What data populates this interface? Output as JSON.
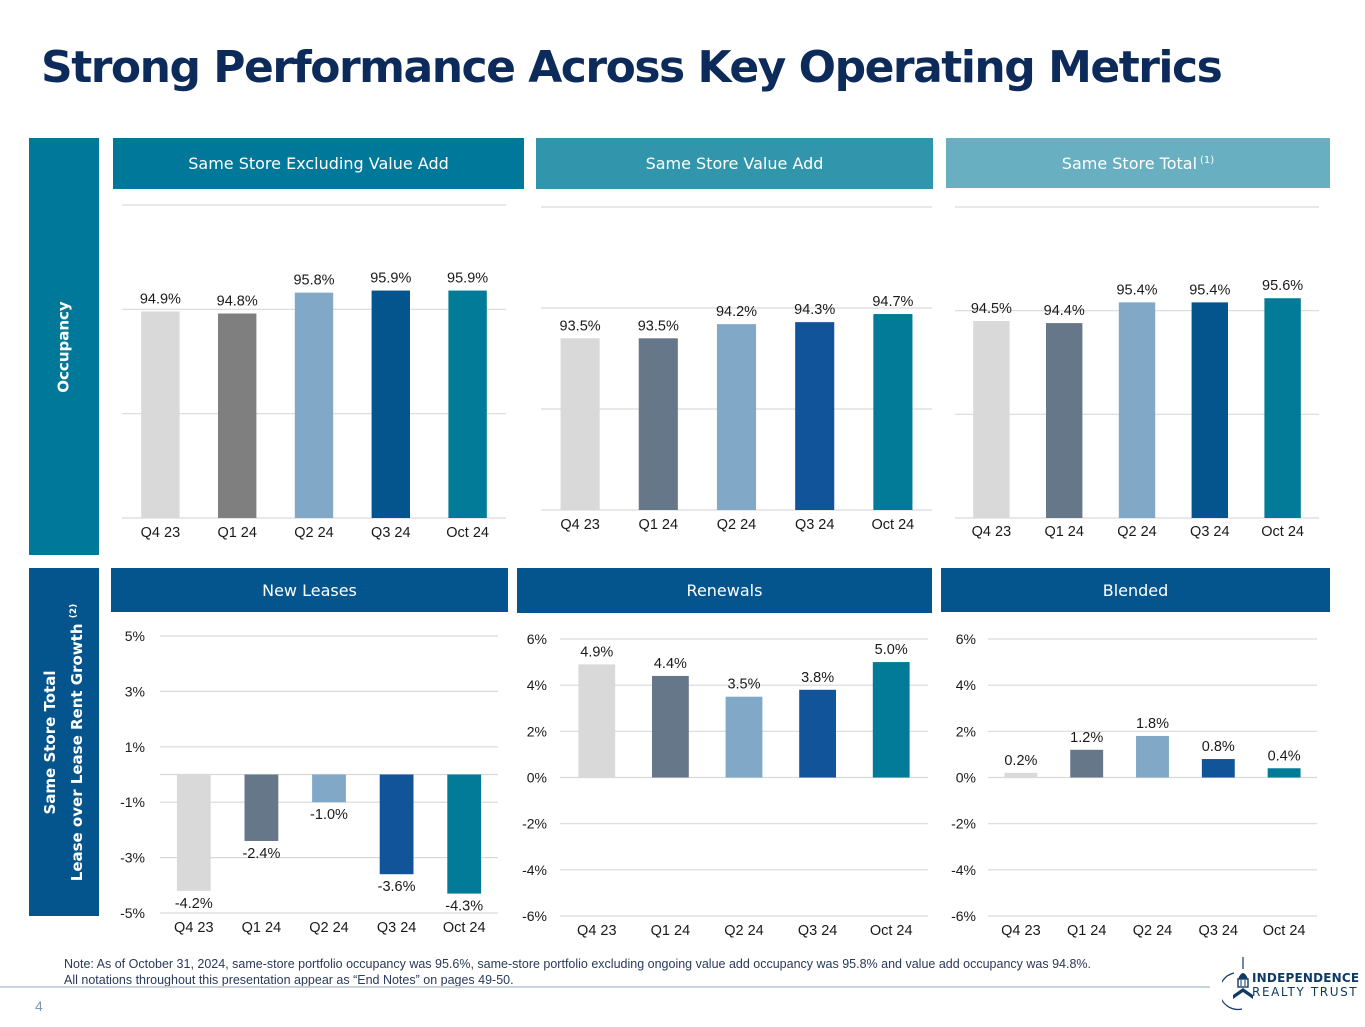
{
  "page": {
    "title": "Strong Performance Across Key Operating Metrics",
    "page_number": "4",
    "note_line1": "Note: As of October 31, 2024, same-store portfolio occupancy was 95.6%, same-store portfolio excluding ongoing value add occupancy was 95.8% and value add occupancy was 94.8%.",
    "note_line2": "All notations throughout this presentation appear as “End Notes” on pages 49-50.",
    "logo": {
      "line1": "INDEPENDENCE",
      "line2": "REALTY TRUST",
      "icon": "building-dome-icon"
    }
  },
  "rows": {
    "occupancy": {
      "label": "Occupancy",
      "color": "#00789a"
    },
    "growth": {
      "label_line1": "Same Store Total",
      "label_line2": "Lease over Lease Rent Growth",
      "footnote": "(2)",
      "color": "#04558d"
    }
  },
  "bar_colors": [
    "#d9d9d9",
    "#67778a",
    "#81a8c6",
    "#0f5697",
    "#017b97"
  ],
  "chart_data": [
    {
      "type": "bar",
      "title": "Same Store Excluding Value Add",
      "header_color": "#00789a",
      "row": "Occupancy",
      "categories": [
        "Q4 23",
        "Q1 24",
        "Q2 24",
        "Q3 24",
        "Oct 24"
      ],
      "values": [
        94.9,
        94.8,
        95.8,
        95.9,
        95.9
      ],
      "labels": [
        "94.9%",
        "94.8%",
        "95.8%",
        "95.9%",
        "95.9%"
      ],
      "bar_colors": [
        "#d9d9d9",
        "#7f7f7f",
        "#81a8c6",
        "#04558d",
        "#017b97"
      ],
      "ylim": [
        85,
        100
      ],
      "gridlines": [
        85,
        90,
        95,
        100
      ],
      "y_tick_labels_shown": false,
      "grid": true
    },
    {
      "type": "bar",
      "title": "Same Store Value Add",
      "header_color": "#3196ab",
      "row": "Occupancy",
      "categories": [
        "Q4 23",
        "Q1 24",
        "Q2 24",
        "Q3 24",
        "Oct 24"
      ],
      "values": [
        93.5,
        93.5,
        94.2,
        94.3,
        94.7
      ],
      "labels": [
        "93.5%",
        "93.5%",
        "94.2%",
        "94.3%",
        "94.7%"
      ],
      "bar_colors": [
        "#d9d9d9",
        "#67778a",
        "#81a8c6",
        "#125499",
        "#017b97"
      ],
      "ylim": [
        85,
        100
      ],
      "gridlines": [
        85,
        90,
        95,
        100
      ],
      "y_tick_labels_shown": false,
      "grid": true
    },
    {
      "type": "bar",
      "title": "Same Store Total",
      "title_footnote": "(1)",
      "header_color": "#67afc1",
      "row": "Occupancy",
      "categories": [
        "Q4 23",
        "Q1 24",
        "Q2 24",
        "Q3 24",
        "Oct 24"
      ],
      "values": [
        94.5,
        94.4,
        95.4,
        95.4,
        95.6
      ],
      "labels": [
        "94.5%",
        "94.4%",
        "95.4%",
        "95.4%",
        "95.6%"
      ],
      "bar_colors": [
        "#d9d9d9",
        "#67778a",
        "#81a8c6",
        "#04558d",
        "#017b97"
      ],
      "ylim": [
        85,
        100
      ],
      "gridlines": [
        85,
        90,
        95,
        100
      ],
      "y_tick_labels_shown": false,
      "grid": true
    },
    {
      "type": "bar",
      "title": "New Leases",
      "header_color": "#04558d",
      "row": "Same Store Total Lease over Lease Rent Growth",
      "categories": [
        "Q4 23",
        "Q1 24",
        "Q2 24",
        "Q3 24",
        "Oct 24"
      ],
      "values": [
        -4.2,
        -2.4,
        -1.0,
        -3.6,
        -4.3
      ],
      "labels": [
        "-4.2%",
        "-2.4%",
        "-1.0%",
        "-3.6%",
        "-4.3%"
      ],
      "bar_colors": [
        "#d9d9d9",
        "#67778a",
        "#81a8c6",
        "#125499",
        "#017b97"
      ],
      "ylim": [
        -5,
        5
      ],
      "y_ticks": [
        5,
        3,
        1,
        -1,
        -3,
        -5
      ],
      "y_tick_labels": [
        "5%",
        "3%",
        "1%",
        "-1%",
        "-3%",
        "-5%"
      ],
      "grid": true
    },
    {
      "type": "bar",
      "title": "Renewals",
      "header_color": "#04558d",
      "row": "Same Store Total Lease over Lease Rent Growth",
      "categories": [
        "Q4 23",
        "Q1 24",
        "Q2 24",
        "Q3 24",
        "Oct 24"
      ],
      "values": [
        4.9,
        4.4,
        3.5,
        3.8,
        5.0
      ],
      "labels": [
        "4.9%",
        "4.4%",
        "3.5%",
        "3.8%",
        "5.0%"
      ],
      "bar_colors": [
        "#d9d9d9",
        "#67778a",
        "#81a8c6",
        "#125499",
        "#017b97"
      ],
      "ylim": [
        -6,
        6
      ],
      "y_ticks": [
        6,
        4,
        2,
        0,
        -2,
        -4,
        -6
      ],
      "y_tick_labels": [
        "6%",
        "4%",
        "2%",
        "0%",
        "-2%",
        "-4%",
        "-6%"
      ],
      "grid": true
    },
    {
      "type": "bar",
      "title": "Blended",
      "header_color": "#04558d",
      "row": "Same Store Total Lease over Lease Rent Growth",
      "categories": [
        "Q4 23",
        "Q1 24",
        "Q2 24",
        "Q3 24",
        "Oct 24"
      ],
      "values": [
        0.2,
        1.2,
        1.8,
        0.8,
        0.4
      ],
      "labels": [
        "0.2%",
        "1.2%",
        "1.8%",
        "0.8%",
        "0.4%"
      ],
      "bar_colors": [
        "#d9d9d9",
        "#67778a",
        "#81a8c6",
        "#125499",
        "#017b97"
      ],
      "ylim": [
        -6,
        6
      ],
      "y_ticks": [
        6,
        4,
        2,
        0,
        -2,
        -4,
        -6
      ],
      "y_tick_labels": [
        "6%",
        "4%",
        "2%",
        "0%",
        "-2%",
        "-4%",
        "-6%"
      ],
      "grid": true
    }
  ]
}
